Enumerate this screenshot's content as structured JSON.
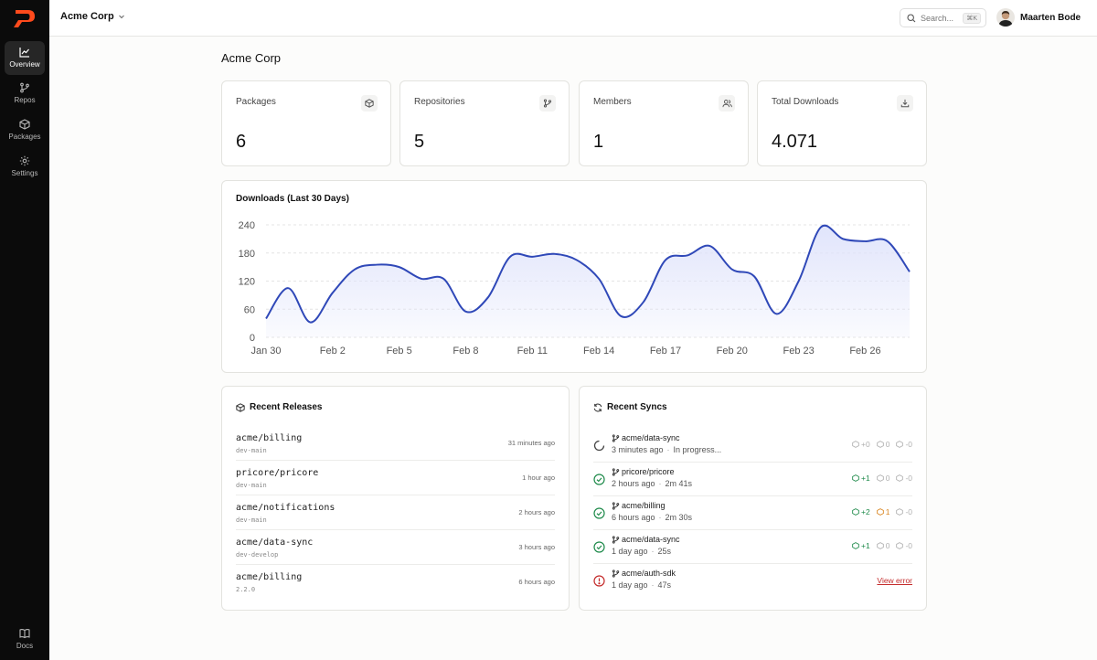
{
  "app": {
    "org_name": "Acme Corp",
    "search_placeholder": "Search...",
    "search_shortcut": "⌘K",
    "user_name": "Maarten Bode"
  },
  "sidebar": {
    "items": [
      {
        "label": "Overview",
        "icon": "chart-line-icon",
        "active": true
      },
      {
        "label": "Repos",
        "icon": "git-branch-icon"
      },
      {
        "label": "Packages",
        "icon": "package-icon"
      },
      {
        "label": "Settings",
        "icon": "gear-icon"
      }
    ],
    "docs_label": "Docs"
  },
  "page": {
    "title": "Acme Corp"
  },
  "stats": [
    {
      "label": "Packages",
      "value": "6",
      "icon": "package-icon"
    },
    {
      "label": "Repositories",
      "value": "5",
      "icon": "git-branch-icon"
    },
    {
      "label": "Members",
      "value": "1",
      "icon": "users-icon"
    },
    {
      "label": "Total Downloads",
      "value": "4.071",
      "icon": "download-icon"
    }
  ],
  "chart_data": {
    "type": "area",
    "title": "Downloads (Last 30 Days)",
    "x": [
      "Jan 30",
      "Jan 31",
      "Feb 1",
      "Feb 2",
      "Feb 3",
      "Feb 4",
      "Feb 5",
      "Feb 6",
      "Feb 7",
      "Feb 8",
      "Feb 9",
      "Feb 10",
      "Feb 11",
      "Feb 12",
      "Feb 13",
      "Feb 14",
      "Feb 15",
      "Feb 16",
      "Feb 17",
      "Feb 18",
      "Feb 19",
      "Feb 20",
      "Feb 21",
      "Feb 22",
      "Feb 23",
      "Feb 24",
      "Feb 25",
      "Feb 26",
      "Feb 27",
      "Feb 28"
    ],
    "values": [
      40,
      105,
      32,
      95,
      145,
      155,
      150,
      125,
      125,
      55,
      85,
      172,
      172,
      178,
      165,
      125,
      45,
      75,
      165,
      175,
      195,
      145,
      130,
      50,
      120,
      235,
      210,
      205,
      205,
      140
    ],
    "xticks": [
      "Jan 30",
      "Feb 2",
      "Feb 5",
      "Feb 8",
      "Feb 11",
      "Feb 14",
      "Feb 17",
      "Feb 20",
      "Feb 23",
      "Feb 26"
    ],
    "yticks": [
      0,
      60,
      120,
      180,
      240
    ],
    "ylim": [
      0,
      240
    ],
    "color": "#2f48b8",
    "fill_color": "#dfe3fb",
    "grid": true,
    "xlabel": "",
    "ylabel": ""
  },
  "releases": {
    "title": "Recent Releases",
    "items": [
      {
        "name": "acme/billing",
        "branch": "dev-main",
        "time": "31 minutes ago"
      },
      {
        "name": "pricore/pricore",
        "branch": "dev-main",
        "time": "1 hour ago"
      },
      {
        "name": "acme/notifications",
        "branch": "dev-main",
        "time": "2 hours ago"
      },
      {
        "name": "acme/data-sync",
        "branch": "dev-develop",
        "time": "3 hours ago"
      },
      {
        "name": "acme/billing",
        "branch": "2.2.0",
        "time": "6 hours ago"
      }
    ]
  },
  "syncs": {
    "title": "Recent Syncs",
    "items": [
      {
        "repo": "acme/data-sync",
        "when": "3 minutes ago",
        "detail": "In progress...",
        "status": "progress",
        "added": "+0",
        "updated": "0",
        "removed": "-0"
      },
      {
        "repo": "pricore/pricore",
        "when": "2 hours ago",
        "detail": "2m 41s",
        "status": "success",
        "added": "+1",
        "updated": "0",
        "removed": "-0"
      },
      {
        "repo": "acme/billing",
        "when": "6 hours ago",
        "detail": "2m 30s",
        "status": "success",
        "added": "+2",
        "updated": "1",
        "removed": "-0"
      },
      {
        "repo": "acme/data-sync",
        "when": "1 day ago",
        "detail": "25s",
        "status": "success",
        "added": "+1",
        "updated": "0",
        "removed": "-0"
      },
      {
        "repo": "acme/auth-sdk",
        "when": "1 day ago",
        "detail": "47s",
        "status": "error",
        "error_label": "View error"
      }
    ]
  }
}
